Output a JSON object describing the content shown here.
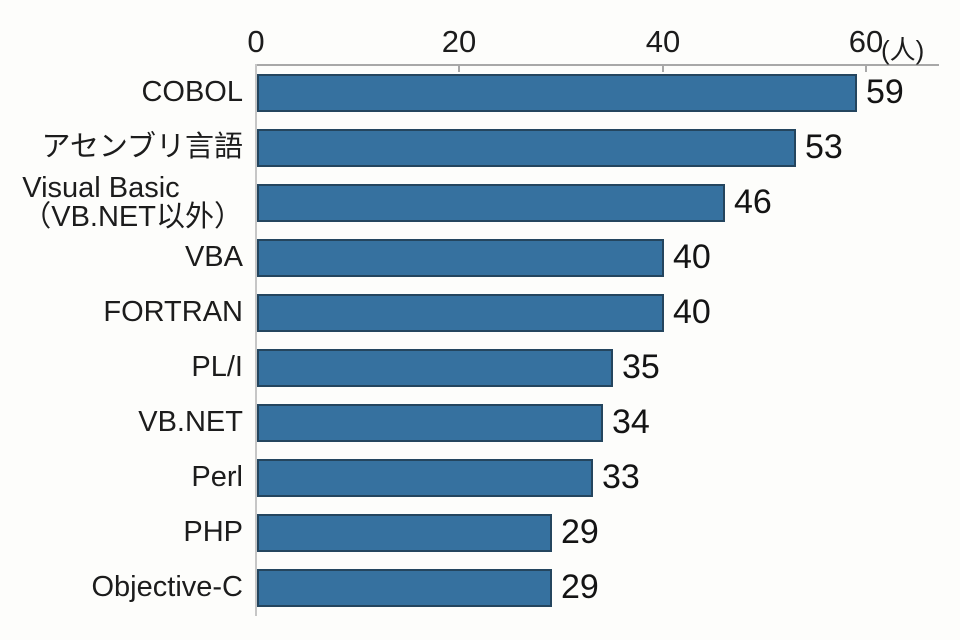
{
  "chart_data": {
    "type": "bar",
    "orientation": "horizontal",
    "title": "",
    "categories": [
      "COBOL",
      "アセンブリ言語",
      "Visual Basic\n（VB.NET以外）",
      "VBA",
      "FORTRAN",
      "PL/I",
      "VB.NET",
      "Perl",
      "PHP",
      "Objective-C"
    ],
    "values": [
      59,
      53,
      46,
      40,
      40,
      35,
      34,
      33,
      29,
      29
    ],
    "value_labels_shown": true,
    "x_axis": {
      "position": "top",
      "min": 0,
      "max": 60,
      "ticks": [
        0,
        20,
        40,
        60
      ],
      "unit": "(人)"
    },
    "legend": false,
    "grid": false,
    "style": {
      "bar_fill": "#36719F",
      "bar_border": "#24455E",
      "text_color": "#1c1c1c",
      "axis_color": "#a8a8a8",
      "background": "#fdfdfb"
    }
  }
}
